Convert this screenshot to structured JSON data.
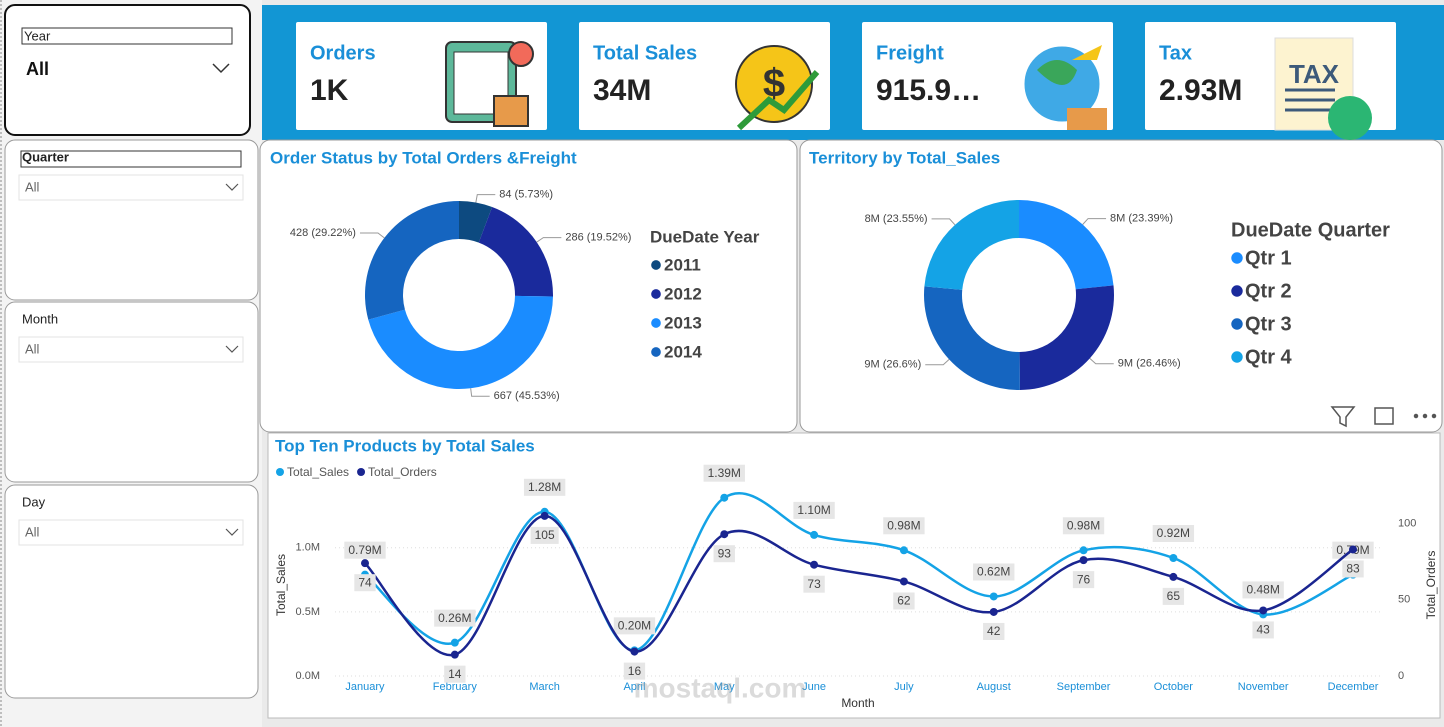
{
  "slicers": [
    {
      "label": "Year",
      "value": "All"
    },
    {
      "label": "Quarter",
      "value": "All"
    },
    {
      "label": "Month",
      "value": "All"
    },
    {
      "label": "Day",
      "value": "All"
    }
  ],
  "cards": [
    {
      "title": "Orders",
      "value": "1K"
    },
    {
      "title": "Total Sales",
      "value": "34M"
    },
    {
      "title": "Freight",
      "value": "915.9…"
    },
    {
      "title": "Tax",
      "value": "2.93M"
    }
  ],
  "chart_data": [
    {
      "type": "donut",
      "title": "Order Status by Total Orders &Freight",
      "legend_title": "DueDate Year",
      "categories": [
        "2011",
        "2012",
        "2013",
        "2014"
      ],
      "values": [
        84,
        286,
        667,
        428
      ],
      "value_labels": [
        "84 (5.73%)",
        "286 (19.52%)",
        "667 (45.53%)",
        "428 (29.22%)"
      ],
      "colors": [
        "#0d4a80",
        "#1a2a9c",
        "#1a8cff",
        "#1565c0"
      ]
    },
    {
      "type": "donut",
      "title": "Territory by Total_Sales",
      "legend_title": "DueDate Quarter",
      "categories": [
        "Qtr 1",
        "Qtr 2",
        "Qtr 3",
        "Qtr 4"
      ],
      "values": [
        23.39,
        26.46,
        26.6,
        23.55
      ],
      "value_labels": [
        "8M (23.39%)",
        "9M (26.46%)",
        "9M (26.6%)",
        "8M (23.55%)"
      ],
      "colors": [
        "#1a8cff",
        "#1a2a9c",
        "#1565c0",
        "#14a3e6"
      ]
    },
    {
      "type": "line",
      "title": "Top Ten Products by Total Sales",
      "x_label": "Month",
      "y_label": "Total_Sales",
      "y2_label": "Total_Orders",
      "categories": [
        "January",
        "February",
        "March",
        "April",
        "May",
        "June",
        "July",
        "August",
        "September",
        "October",
        "November",
        "December"
      ],
      "series": [
        {
          "name": "Total_Sales",
          "color": "#14a3e6",
          "values": [
            0.79,
            0.26,
            1.28,
            0.2,
            1.39,
            1.1,
            0.98,
            0.62,
            0.98,
            0.92,
            0.48,
            0.79
          ],
          "value_labels": [
            "0.79M",
            "0.26M",
            "1.28M",
            "0.20M",
            "1.39M",
            "1.10M",
            "0.98M",
            "0.62M",
            "0.98M",
            "0.92M",
            "0.48M",
            "0.79M"
          ]
        },
        {
          "name": "Total_Orders",
          "color": "#1a2590",
          "axis": "y2",
          "values": [
            74,
            14,
            105,
            16,
            93,
            73,
            62,
            42,
            76,
            65,
            43,
            83
          ]
        }
      ],
      "ylim": [
        0,
        1.45
      ],
      "yticks": [
        {
          "value": 0,
          "label": "0.0M"
        },
        {
          "value": 0.5,
          "label": "0.5M"
        },
        {
          "value": 1,
          "label": "1.0M"
        }
      ],
      "y2lim": [
        0,
        122
      ],
      "y2ticks": [
        0,
        50,
        100
      ],
      "grid": true,
      "smooth": true
    }
  ],
  "watermark": "mostaql.com"
}
